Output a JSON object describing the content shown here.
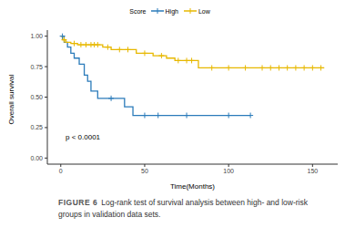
{
  "chart_data": {
    "type": "line",
    "legend_title": "Score",
    "legend": "top",
    "xlabel": "Time(Months)",
    "ylabel": "Overall survival",
    "annotations": [
      "p < 0.0001"
    ],
    "caption": {
      "label": "FIGURE 6",
      "text": "Log-rank test of survival analysis between high- and low-risk groups in validation data sets."
    },
    "grid": false,
    "xlim": [
      -8,
      165
    ],
    "xticks": [
      0,
      50,
      100,
      150
    ],
    "ylim": [
      -0.05,
      1.05
    ],
    "yticks": [
      {
        "value": 0,
        "label": "0.00"
      },
      {
        "value": 0.25,
        "label": "0.25"
      },
      {
        "value": 0.5,
        "label": "0.50"
      },
      {
        "value": 0.75,
        "label": "0.75"
      },
      {
        "value": 1,
        "label": "1.00"
      }
    ],
    "series": [
      {
        "name": "High",
        "color": "#2b7bba",
        "line_style": "step",
        "marker": "plus",
        "x": [
          0,
          2,
          4,
          6,
          8,
          11,
          14,
          16,
          18,
          22,
          38,
          43,
          113
        ],
        "values": [
          1,
          0.95,
          0.91,
          0.86,
          0.82,
          0.77,
          0.68,
          0.63,
          0.55,
          0.49,
          0.42,
          0.35,
          0.35
        ],
        "censored_x": [
          1,
          30,
          50,
          58,
          75,
          100,
          113
        ],
        "censored_y": [
          1,
          0.49,
          0.35,
          0.35,
          0.35,
          0.35,
          0.35
        ]
      },
      {
        "name": "Low",
        "color": "#e7b800",
        "line_style": "step",
        "marker": "plus",
        "x": [
          0,
          1,
          3,
          6,
          10,
          25,
          30,
          45,
          55,
          63,
          68,
          82,
          157
        ],
        "values": [
          1,
          0.97,
          0.95,
          0.94,
          0.93,
          0.91,
          0.89,
          0.86,
          0.84,
          0.82,
          0.8,
          0.74,
          0.74
        ],
        "censored_x": [
          2,
          8,
          12,
          15,
          18,
          20,
          22,
          28,
          35,
          40,
          50,
          60,
          70,
          75,
          78,
          90,
          100,
          110,
          120,
          125,
          130,
          135,
          140,
          145,
          150,
          155
        ],
        "censored_y": [
          0.97,
          0.94,
          0.93,
          0.93,
          0.93,
          0.93,
          0.93,
          0.91,
          0.89,
          0.89,
          0.86,
          0.84,
          0.8,
          0.8,
          0.8,
          0.74,
          0.74,
          0.74,
          0.74,
          0.74,
          0.74,
          0.74,
          0.74,
          0.74,
          0.74,
          0.74
        ]
      }
    ]
  }
}
